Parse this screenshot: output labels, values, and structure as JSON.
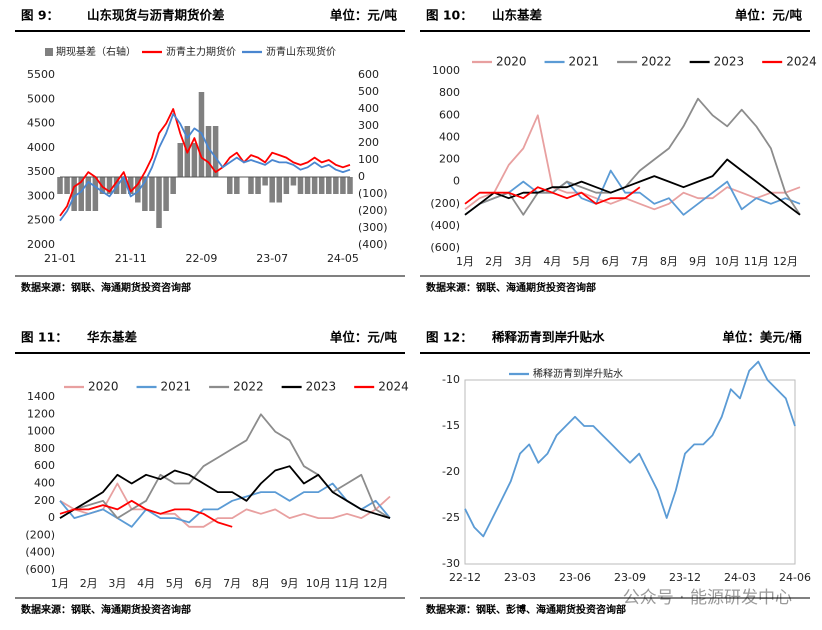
{
  "chart_data": [
    {
      "type": "combo",
      "figure": "图 9：",
      "title": "山东现货与沥青期货价差",
      "unit": "单位：元/吨",
      "source": "数据来源：钢联、海通期货投资咨询部",
      "categories": [
        "21-01",
        null,
        null,
        null,
        null,
        null,
        null,
        null,
        null,
        null,
        "21-11",
        null,
        null,
        null,
        null,
        null,
        null,
        null,
        null,
        null,
        "22-09",
        null,
        null,
        null,
        null,
        null,
        null,
        null,
        null,
        null,
        "23-07",
        null,
        null,
        null,
        null,
        null,
        null,
        null,
        null,
        null,
        "24-05",
        null
      ],
      "series": [
        {
          "name": "期现基差（右轴）",
          "type": "bar",
          "axis": "y2",
          "color": "#808080",
          "values": [
            -100,
            -100,
            -200,
            -200,
            -200,
            -200,
            -100,
            -100,
            -100,
            -100,
            -100,
            -150,
            -200,
            -200,
            -300,
            -200,
            -100,
            200,
            300,
            200,
            500,
            300,
            300,
            0,
            -100,
            -100,
            0,
            -100,
            -100,
            -50,
            -150,
            -150,
            -100,
            -50,
            -100,
            -100,
            -100,
            -100,
            -100,
            -100,
            -100,
            -100
          ]
        },
        {
          "name": "沥青主力期货价",
          "type": "line",
          "color": "#ff0000",
          "values": [
            2600,
            2800,
            3200,
            3300,
            3500,
            3400,
            3200,
            3100,
            3300,
            3500,
            3100,
            3250,
            3500,
            3800,
            4300,
            4500,
            4800,
            4300,
            3900,
            4200,
            3800,
            3700,
            3500,
            3600,
            3800,
            3900,
            3700,
            3850,
            3800,
            3700,
            3900,
            3850,
            3800,
            3700,
            3650,
            3700,
            3800,
            3700,
            3750,
            3650,
            3600,
            3650
          ]
        },
        {
          "name": "沥青山东现货价",
          "type": "line",
          "color": "#4a86d0",
          "values": [
            2500,
            2700,
            3000,
            3100,
            3300,
            3200,
            3100,
            3000,
            3200,
            3400,
            3000,
            3100,
            3300,
            3600,
            4000,
            4300,
            4700,
            4500,
            4200,
            4400,
            4300,
            4000,
            3800,
            3600,
            3700,
            3800,
            3700,
            3750,
            3700,
            3650,
            3750,
            3700,
            3700,
            3650,
            3550,
            3600,
            3700,
            3600,
            3650,
            3550,
            3500,
            3550
          ]
        }
      ],
      "ylim": [
        2000,
        5500
      ],
      "yticks": [
        2000,
        2500,
        3000,
        3500,
        4000,
        4500,
        5000,
        5500
      ],
      "y2lim": [
        -400,
        600
      ],
      "y2ticks": [
        {
          "value": -400,
          "label": "(400)"
        },
        {
          "value": -300,
          "label": "(300)"
        },
        {
          "value": -200,
          "label": "(200)"
        },
        {
          "value": -100,
          "label": "(100)"
        },
        0,
        100,
        200,
        300,
        400,
        500,
        600
      ],
      "negative_tick_color": "#ff0000"
    },
    {
      "type": "line",
      "figure": "图 10：",
      "title": "山东基差",
      "unit": "单位：元/吨",
      "source": "数据来源：钢联、海通期货投资咨询部",
      "categories": [
        "1月",
        null,
        "2月",
        null,
        "3月",
        null,
        "4月",
        null,
        "5月",
        null,
        "6月",
        null,
        "7月",
        null,
        "8月",
        null,
        "9月",
        null,
        "10月",
        null,
        "11月",
        null,
        "12月",
        null
      ],
      "series": [
        {
          "name": "2020",
          "color": "#e8a0a0",
          "values": [
            -250,
            -150,
            -100,
            150,
            300,
            600,
            -50,
            -100,
            -100,
            -150,
            -200,
            -150,
            -200,
            -250,
            -200,
            -100,
            -150,
            -150,
            -50,
            -100,
            -150,
            -100,
            -100,
            -50
          ]
        },
        {
          "name": "2021",
          "color": "#5b9bd5",
          "values": [
            -300,
            -200,
            -150,
            -100,
            0,
            -100,
            -100,
            0,
            -150,
            -200,
            100,
            -100,
            -100,
            -200,
            -150,
            -300,
            -200,
            -100,
            0,
            -250,
            -150,
            -200,
            -150,
            -200
          ]
        },
        {
          "name": "2022",
          "color": "#8c8c8c",
          "values": [
            -300,
            -200,
            -150,
            -100,
            -300,
            -100,
            -100,
            0,
            -50,
            -100,
            -100,
            -50,
            100,
            200,
            300,
            500,
            750,
            600,
            500,
            650,
            500,
            300,
            -100,
            -300
          ]
        },
        {
          "name": "2023",
          "color": "#000000",
          "values": [
            -300,
            -200,
            -100,
            -150,
            -100,
            -100,
            -50,
            -50,
            0,
            -50,
            -100,
            -50,
            0,
            50,
            0,
            -50,
            0,
            50,
            200,
            100,
            0,
            -100,
            -200,
            -300
          ]
        },
        {
          "name": "2024",
          "color": "#ff0000",
          "values": [
            -200,
            -100,
            -100,
            -100,
            -150,
            -50,
            -100,
            -150,
            -100,
            -200,
            -150,
            -150,
            -50,
            null,
            null,
            null,
            null,
            null,
            null,
            null,
            null,
            null,
            null,
            null
          ]
        }
      ],
      "ylim": [
        -600,
        1000
      ],
      "yticks": [
        {
          "value": -600,
          "label": "(600)"
        },
        {
          "value": -400,
          "label": "(400)"
        },
        {
          "value": -200,
          "label": "(200)"
        },
        0,
        200,
        400,
        600,
        800,
        1000
      ],
      "negative_tick_color": "#ff0000"
    },
    {
      "type": "line",
      "figure": "图 11：",
      "title": "华东基差",
      "unit": "单位：元/吨",
      "source": "数据来源：钢联、海通期货投资咨询部",
      "categories": [
        "1月",
        null,
        "2月",
        null,
        "3月",
        null,
        "4月",
        null,
        "5月",
        null,
        "6月",
        null,
        "7月",
        null,
        "8月",
        null,
        "9月",
        null,
        "10月",
        null,
        "11月",
        null,
        "12月",
        null
      ],
      "series": [
        {
          "name": "2020",
          "color": "#e8a0a0",
          "values": [
            200,
            100,
            50,
            100,
            400,
            100,
            100,
            50,
            50,
            -100,
            -100,
            0,
            0,
            100,
            50,
            100,
            0,
            50,
            0,
            0,
            50,
            0,
            100,
            250
          ]
        },
        {
          "name": "2021",
          "color": "#5b9bd5",
          "values": [
            200,
            0,
            50,
            100,
            0,
            -100,
            100,
            0,
            0,
            -50,
            100,
            100,
            200,
            250,
            300,
            300,
            200,
            300,
            300,
            400,
            200,
            100,
            200,
            0
          ]
        },
        {
          "name": "2022",
          "color": "#8c8c8c",
          "values": [
            0,
            100,
            150,
            200,
            0,
            100,
            200,
            500,
            400,
            400,
            600,
            700,
            800,
            900,
            1200,
            1000,
            900,
            600,
            500,
            300,
            400,
            500,
            100,
            0
          ]
        },
        {
          "name": "2023",
          "color": "#000000",
          "values": [
            0,
            100,
            200,
            300,
            500,
            400,
            500,
            450,
            550,
            500,
            400,
            300,
            300,
            200,
            400,
            550,
            600,
            400,
            500,
            300,
            200,
            100,
            50,
            0
          ]
        },
        {
          "name": "2024",
          "color": "#ff0000",
          "values": [
            50,
            100,
            100,
            150,
            100,
            200,
            100,
            50,
            100,
            100,
            50,
            -50,
            -100,
            null,
            null,
            null,
            null,
            null,
            null,
            null,
            null,
            null,
            null,
            null
          ]
        }
      ],
      "ylim": [
        -600,
        1400
      ],
      "yticks": [
        {
          "value": -600,
          "label": "(600)"
        },
        {
          "value": -400,
          "label": "(400)"
        },
        {
          "value": -200,
          "label": "(200)"
        },
        0,
        200,
        400,
        600,
        800,
        1000,
        1200,
        1400
      ],
      "negative_tick_color": "#ff0000"
    },
    {
      "type": "line",
      "figure": "图 12：",
      "title": "稀释沥青到岸升贴水",
      "unit": "单位：美元/桶",
      "source": "数据来源：钢联、彭博、海通期货投资咨询部",
      "frame": true,
      "categories": [
        "22-12",
        null,
        null,
        null,
        null,
        null,
        "23-03",
        null,
        null,
        null,
        null,
        null,
        "23-06",
        null,
        null,
        null,
        null,
        null,
        "23-09",
        null,
        null,
        null,
        null,
        null,
        "23-12",
        null,
        null,
        null,
        null,
        null,
        "24-03",
        null,
        null,
        null,
        null,
        null,
        "24-06"
      ],
      "series": [
        {
          "name": "稀释沥青到岸升贴水",
          "color": "#5b9bd5",
          "values": [
            -24,
            -26,
            -27,
            -25,
            -23,
            -21,
            -18,
            -17,
            -19,
            -18,
            -16,
            -15,
            -14,
            -15,
            -15,
            -16,
            -17,
            -18,
            -19,
            -18,
            -20,
            -22,
            -25,
            -22,
            -18,
            -17,
            -17,
            -16,
            -14,
            -11,
            -12,
            -9,
            -8,
            -10,
            -11,
            -12,
            -15
          ]
        }
      ],
      "ylim": [
        -30,
        -10
      ],
      "yticks": [
        -30,
        -25,
        -20,
        -15,
        -10
      ]
    }
  ],
  "watermark": "公众号 · 能源研发中心"
}
